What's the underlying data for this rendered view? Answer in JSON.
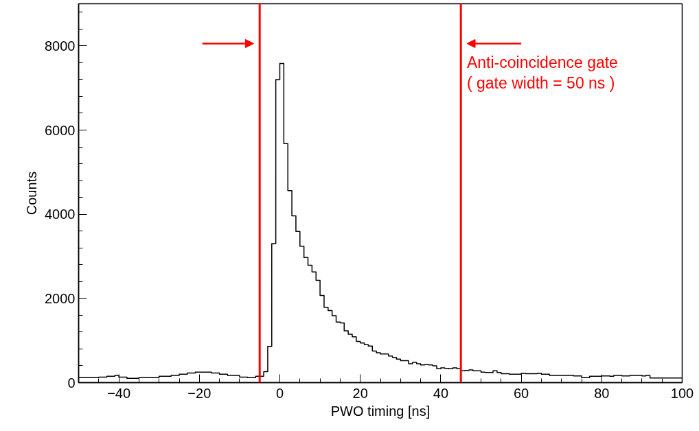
{
  "chart_data": {
    "type": "histogram",
    "xlabel": "PWO timing [ns]",
    "ylabel": "Counts",
    "bins": [
      -50,
      -49,
      -48,
      -47,
      -46,
      -45,
      -44,
      -43,
      -42,
      -41,
      -40,
      -39,
      -38,
      -37,
      -36,
      -35,
      -34,
      -33,
      -32,
      -31,
      -30,
      -29,
      -28,
      -27,
      -26,
      -25,
      -24,
      -23,
      -22,
      -21,
      -20,
      -19,
      -18,
      -17,
      -16,
      -15,
      -14,
      -13,
      -12,
      -11,
      -10,
      -9,
      -8,
      -7,
      -6,
      -5,
      -4,
      -3,
      -2,
      -1,
      0,
      1,
      2,
      3,
      4,
      5,
      6,
      7,
      8,
      9,
      10,
      11,
      12,
      13,
      14,
      15,
      16,
      17,
      18,
      19,
      20,
      21,
      22,
      23,
      24,
      25,
      26,
      27,
      28,
      29,
      30,
      31,
      32,
      33,
      34,
      35,
      36,
      37,
      38,
      39,
      40,
      41,
      42,
      43,
      44,
      45,
      46,
      47,
      48,
      49,
      50,
      51,
      52,
      53,
      54,
      55,
      56,
      57,
      58,
      59,
      60,
      61,
      62,
      63,
      64,
      65,
      66,
      67,
      68,
      69,
      70,
      71,
      72,
      73,
      74,
      75,
      76,
      77,
      78,
      79,
      80,
      81,
      82,
      83,
      84,
      85,
      86,
      87,
      88,
      89,
      90,
      91,
      92,
      93,
      94,
      95,
      96,
      97,
      98,
      99,
      100
    ],
    "values": [
      120,
      120,
      120,
      120,
      120,
      130,
      130,
      150,
      150,
      170,
      130,
      130,
      100,
      100,
      100,
      120,
      120,
      120,
      120,
      120,
      150,
      150,
      150,
      170,
      170,
      200,
      200,
      230,
      230,
      250,
      250,
      250,
      250,
      230,
      230,
      200,
      200,
      170,
      170,
      170,
      130,
      130,
      120,
      120,
      150,
      150,
      260,
      860,
      3300,
      7200,
      7580,
      5680,
      4560,
      3960,
      3590,
      3240,
      2970,
      2790,
      2630,
      2430,
      2070,
      1790,
      1710,
      1590,
      1440,
      1420,
      1230,
      1150,
      1090,
      980,
      940,
      900,
      870,
      750,
      710,
      680,
      680,
      630,
      600,
      560,
      520,
      520,
      450,
      480,
      450,
      420,
      430,
      420,
      400,
      330,
      350,
      340,
      330,
      350,
      330,
      280,
      290,
      300,
      280,
      280,
      250,
      240,
      240,
      280,
      240,
      210,
      210,
      200,
      200,
      200,
      220,
      210,
      210,
      210,
      220,
      200,
      200,
      170,
      170,
      170,
      170,
      170,
      170,
      160,
      160,
      120,
      120,
      150,
      150,
      150,
      160,
      160,
      150,
      170,
      170,
      160,
      160,
      170,
      170,
      170,
      160,
      170,
      110,
      110,
      110,
      110,
      110,
      110,
      110,
      110
    ],
    "color": "#000000",
    "xlim": [
      -50,
      100
    ],
    "xticks": [
      -40,
      -20,
      0,
      20,
      40,
      60,
      80,
      100
    ],
    "ylim": [
      0,
      9000
    ],
    "yticks": [
      0,
      2000,
      4000,
      6000,
      8000
    ],
    "ref_lines": [
      {
        "axis": "x",
        "value": -5,
        "color": "#ff0000"
      },
      {
        "axis": "x",
        "value": 45,
        "color": "#ff0000"
      }
    ],
    "annotations": [
      "Anti-coincidence gate",
      "( gate width = 50 ns )"
    ]
  }
}
